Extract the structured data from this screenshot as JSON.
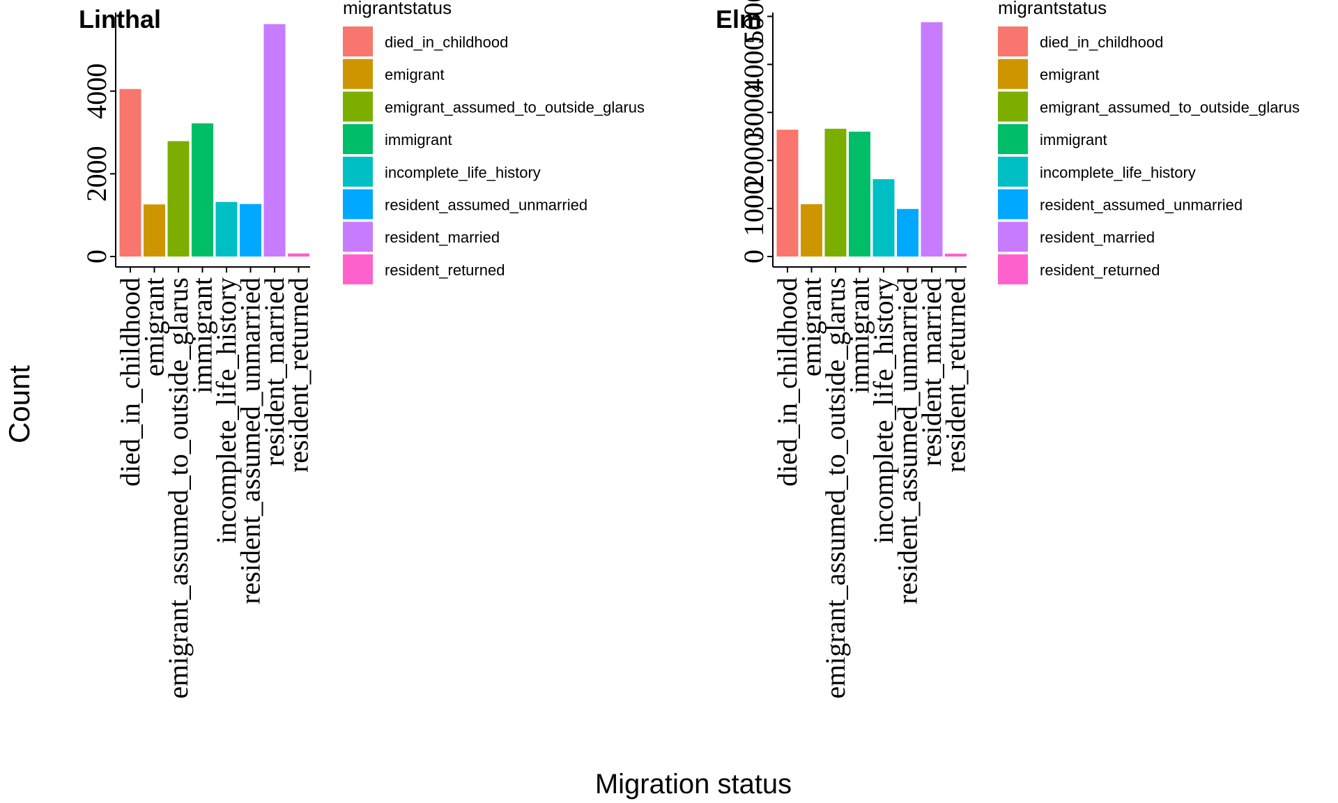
{
  "figure": {
    "ylabel": "Count",
    "xlabel": "Migration status",
    "legend_title": "migrantstatus"
  },
  "legend": {
    "items": [
      {
        "label": "died_in_childhood",
        "color": "#F8766D"
      },
      {
        "label": "emigrant",
        "color": "#CD9600"
      },
      {
        "label": "emigrant_assumed_to_outside_glarus",
        "color": "#7CAE00"
      },
      {
        "label": "immigrant",
        "color": "#00BE67"
      },
      {
        "label": "incomplete_life_history",
        "color": "#00BFC4"
      },
      {
        "label": "resident_assumed_unmarried",
        "color": "#00A9FF"
      },
      {
        "label": "resident_married",
        "color": "#C77CFF"
      },
      {
        "label": "resident_returned",
        "color": "#FF61CC"
      }
    ]
  },
  "chart_data": [
    {
      "type": "bar",
      "title": "Linthal",
      "xlabel": "Migration status",
      "ylabel": "Count",
      "categories": [
        "died_in_childhood",
        "emigrant",
        "emigrant_assumed_to_outside_glarus",
        "immigrant",
        "incomplete_life_history",
        "resident_assumed_unmarried",
        "resident_married",
        "resident_returned"
      ],
      "values": [
        4050,
        1260,
        2790,
        3220,
        1320,
        1270,
        5620,
        75
      ],
      "yticks": [
        0,
        2000,
        4000
      ],
      "ylim": [
        0,
        5900
      ],
      "legend": "right"
    },
    {
      "type": "bar",
      "title": "Elm",
      "xlabel": "Migration status",
      "ylabel": "Count",
      "categories": [
        "died_in_childhood",
        "emigrant",
        "emigrant_assumed_to_outside_glarus",
        "immigrant",
        "incomplete_life_history",
        "resident_assumed_unmarried",
        "resident_married",
        "resident_returned"
      ],
      "values": [
        2640,
        1090,
        2660,
        2600,
        1610,
        990,
        4880,
        60
      ],
      "yticks": [
        0,
        1000,
        2000,
        3000,
        4000,
        5000
      ],
      "ylim": [
        0,
        5080
      ],
      "legend": "right"
    }
  ]
}
